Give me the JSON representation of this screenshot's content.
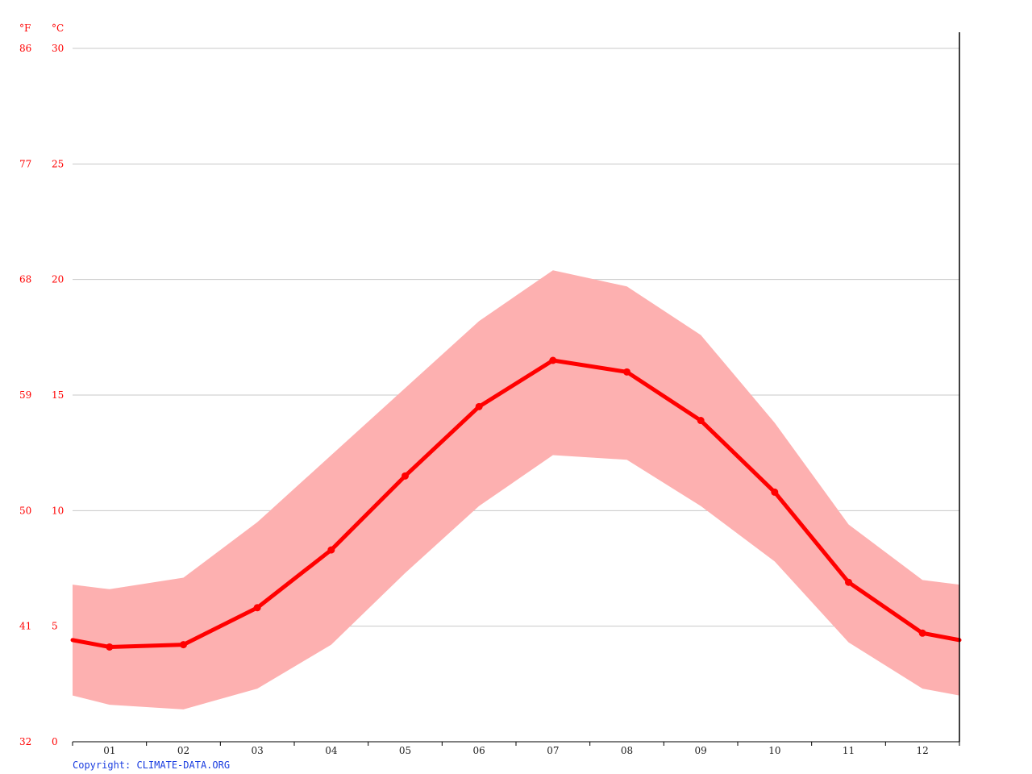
{
  "chart_data": {
    "type": "line",
    "unit_labels": {
      "fahrenheit": "°F",
      "celsius": "°C"
    },
    "yticks_c": [
      30,
      25,
      20,
      15,
      10,
      5,
      0
    ],
    "yticks_f": [
      86,
      77,
      68,
      59,
      50,
      41,
      32
    ],
    "ylim": [
      0,
      30
    ],
    "categories": [
      "01",
      "02",
      "03",
      "04",
      "05",
      "06",
      "07",
      "08",
      "09",
      "10",
      "11",
      "12"
    ],
    "series": [
      {
        "values": [
          4.1,
          4.2,
          5.8,
          8.3,
          11.5,
          14.5,
          16.5,
          16.0,
          13.9,
          10.8,
          6.9,
          4.7
        ]
      }
    ],
    "band": {
      "upper": [
        6.6,
        7.1,
        9.5,
        12.4,
        15.3,
        18.2,
        20.4,
        19.7,
        17.6,
        13.8,
        9.4,
        7.0
      ],
      "lower": [
        1.6,
        1.4,
        2.3,
        4.2,
        7.3,
        10.2,
        12.4,
        12.2,
        10.2,
        7.8,
        4.3,
        2.3
      ]
    },
    "edge_values": {
      "mean": [
        4.4,
        4.4
      ],
      "upper": [
        6.8,
        6.8
      ],
      "lower": [
        2.0,
        2.0
      ]
    },
    "grid": true
  },
  "footer": {
    "copyright": "Copyright: CLIMATE-DATA.ORG"
  },
  "colors": {
    "line": "#ff0000",
    "band": "#fdb0b0",
    "grid": "#c8c8c8",
    "axis_text": "#ff0000",
    "copyright": "#1a3de0"
  }
}
